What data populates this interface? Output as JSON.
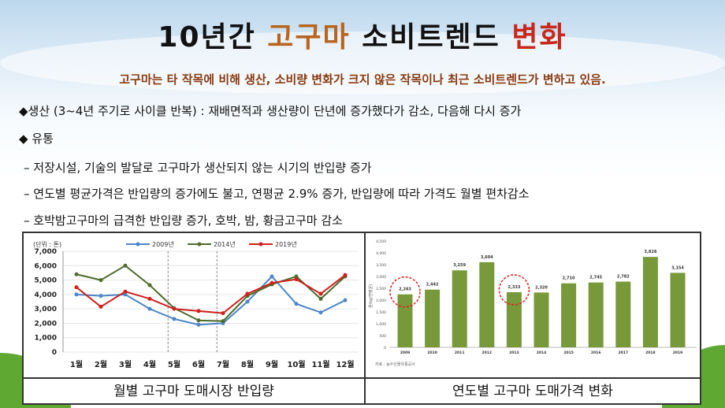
{
  "title": {
    "part1": "10년간 ",
    "part2": "고구마",
    "part3": " 소비트렌드 ",
    "part4": "변화"
  },
  "subtitle": "고구마는 타 작목에 비해 생산, 소비량 변화가 크지 않은 작목이나 최근 소비트렌드가 변하고 있음.",
  "bullets": [
    "◆생산 (3~4년 주기로 사이클 반복) : 재배면적과 생산량이 단년에 증가했다가 감소, 다음해 다시 증가",
    "◆ 유통",
    " – 저장시설, 기술의 발달로 고구마가 생산되지 않는 시기의 반입량 증가",
    " – 연도별 평균가격은 반입량의 증가에도 불고, 연평균 2.9% 증가, 반입량에 따라 가격도 월별 편차감소",
    " – 호박밤고구마의 급격한 반입량 증가, 호박, 밤, 황금고구마 감소"
  ],
  "captions": {
    "left": "월별 고구마 도매시장 반입량",
    "right": "연도별 고구마 도매가격 변화"
  },
  "chart_data": [
    {
      "type": "line",
      "unit_label": "(단위 : 톤)",
      "categories": [
        "1월",
        "2월",
        "3월",
        "4월",
        "5월",
        "6월",
        "7월",
        "8월",
        "9월",
        "10월",
        "11월",
        "12월"
      ],
      "ylim": [
        0,
        7000
      ],
      "yticks": [
        "0",
        "1,000",
        "2,000",
        "3,000",
        "4,000",
        "5,000",
        "6,000",
        "7,000"
      ],
      "grid": true,
      "legend": "top",
      "series": [
        {
          "name": "2009년",
          "color": "#4a86c8",
          "values": [
            4000,
            3900,
            4000,
            3000,
            2300,
            1900,
            2000,
            3500,
            5250,
            3350,
            2750,
            3600
          ]
        },
        {
          "name": "2014년",
          "color": "#4e6b2a",
          "values": [
            5400,
            5000,
            6000,
            4650,
            3050,
            2200,
            2150,
            3900,
            4700,
            5250,
            3700,
            5250
          ]
        },
        {
          "name": "2019년",
          "color": "#d0201c",
          "values": [
            4500,
            3150,
            4200,
            3700,
            3000,
            2850,
            2700,
            4050,
            4800,
            5050,
            4050,
            5350
          ]
        }
      ],
      "dashed_markers": [
        "5월",
        "7월"
      ]
    },
    {
      "type": "bar",
      "categories": [
        "2009",
        "2010",
        "2011",
        "2012",
        "2013",
        "2014",
        "2015",
        "2016",
        "2017",
        "2018",
        "2019"
      ],
      "values": [
        2243,
        2442,
        3259,
        3604,
        2333,
        2320,
        2710,
        2745,
        2782,
        3828,
        3154
      ],
      "labels": [
        "2,243",
        "2,442",
        "3,259",
        "3,604",
        "2,333",
        "2,320",
        "2,710",
        "2,745",
        "2,782",
        "3,828",
        "3,154"
      ],
      "ylim": [
        0,
        4500
      ],
      "yticks": [
        "0",
        "500",
        "1,000",
        "1,500",
        "2,000",
        "2,500",
        "3,000",
        "3,500",
        "4,000",
        "4,500"
      ],
      "ylabel": "원/kg(연평균)",
      "color": "#77993a",
      "highlighted": [
        "2009",
        "2013"
      ],
      "source": "자료 : 농수산물유통공사"
    }
  ]
}
